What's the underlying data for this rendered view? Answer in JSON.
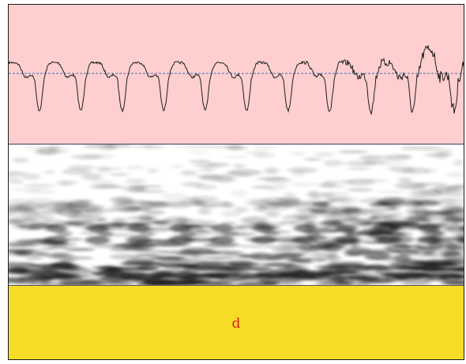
{
  "waveform": {
    "background": "#ffcfcf",
    "line_color": "#1e1e1e",
    "midline_color": "#3f6fb5"
  },
  "spectrogram": {
    "background": "#ffffff",
    "ink": "#1b1b1b"
  },
  "tier": {
    "label": "d",
    "background": "#f7dc27",
    "label_color": "#d62020"
  }
}
